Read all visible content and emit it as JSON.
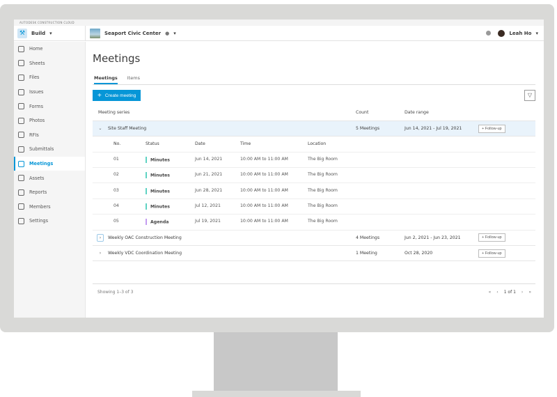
{
  "brand": "AUTODESK CONSTRUCTION CLOUD",
  "app": {
    "name": "Build",
    "project": "Seaport Civic Center",
    "user": "Leah Ho"
  },
  "sidebar": {
    "items": [
      {
        "label": "Home"
      },
      {
        "label": "Sheets"
      },
      {
        "label": "Files"
      },
      {
        "label": "Issues"
      },
      {
        "label": "Forms"
      },
      {
        "label": "Photos"
      },
      {
        "label": "RFIs"
      },
      {
        "label": "Submittals"
      },
      {
        "label": "Meetings",
        "active": true
      },
      {
        "label": "Assets"
      },
      {
        "label": "Reports"
      },
      {
        "label": "Members"
      },
      {
        "label": "Settings"
      }
    ]
  },
  "page": {
    "title": "Meetings",
    "tabs": [
      {
        "label": "Meetings"
      },
      {
        "label": "Items"
      }
    ],
    "create": "Create meeting"
  },
  "table": {
    "headers": {
      "series": "Meeting series",
      "count": "Count",
      "range": "Date range"
    },
    "follow": "Follow-up",
    "sub_headers": {
      "no": "No.",
      "status": "Status",
      "date": "Date",
      "time": "Time",
      "location": "Location"
    },
    "series": [
      {
        "name": "Site Staff Meeting",
        "count": "5 Meetings",
        "range": "Jun 14, 2021 - Jul 19, 2021",
        "expanded": true,
        "meetings": [
          {
            "no": "01",
            "status": "Minutes",
            "date": "Jun 14, 2021",
            "time": "10:00 AM to 11:00 AM",
            "location": "The Big Room"
          },
          {
            "no": "02",
            "status": "Minutes",
            "date": "Jun 21, 2021",
            "time": "10:00 AM to 11:00 AM",
            "location": "The Big Room"
          },
          {
            "no": "03",
            "status": "Minutes",
            "date": "Jun 28, 2021",
            "time": "10:00 AM to 11:00 AM",
            "location": "The Big Room"
          },
          {
            "no": "04",
            "status": "Minutes",
            "date": "Jul 12, 2021",
            "time": "10:00 AM to 11:00 AM",
            "location": "The Big Room"
          },
          {
            "no": "05",
            "status": "Agenda",
            "date": "Jul 19, 2021",
            "time": "10:00 AM to 11:00 AM",
            "location": "The Big Room"
          }
        ]
      },
      {
        "name": "Weekly OAC Construction Meeting",
        "count": "4 Meetings",
        "range": "Jun 2, 2021 - Jun 23, 2021"
      },
      {
        "name": "Weekly VDC Coordination Meeting",
        "count": "1 Meeting",
        "range": "Oct 28, 2020"
      }
    ]
  },
  "footer": {
    "showing": "Showing 1–3 of 3",
    "page": "1 of 1"
  },
  "colors": {
    "accent": "#0696d7",
    "minutes": "#5fd3c3",
    "agenda": "#c49cf0"
  }
}
